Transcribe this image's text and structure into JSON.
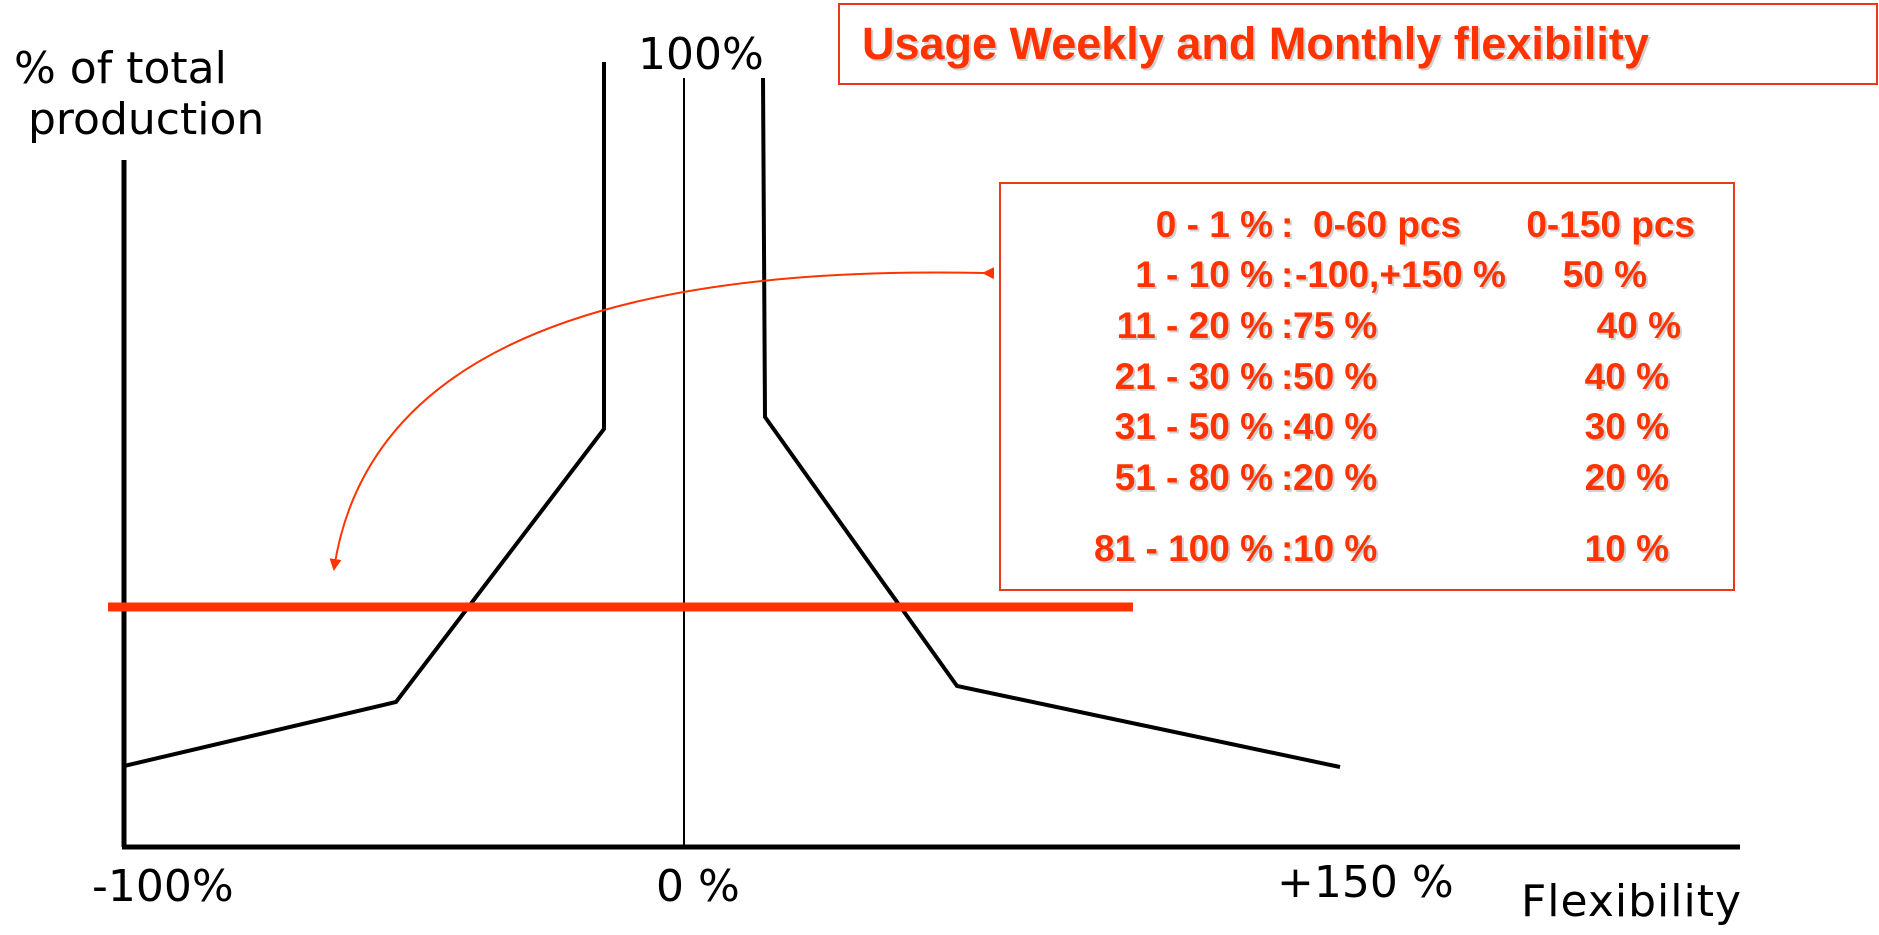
{
  "axes": {
    "y_label_line1": "% of total",
    "y_label_line2": "production",
    "top_label": "100%",
    "x_tick_left": "-100%",
    "x_tick_center": "0 %",
    "x_tick_right": "+150 %",
    "x_label": "Flexibility"
  },
  "title": "Usage  Weekly and Monthly flexibility",
  "table": {
    "rows": [
      {
        "range": "0 -     1 %",
        "sep": ":",
        "weekly": "0-60 pcs",
        "monthly": "0-150 pcs"
      },
      {
        "range": "1 -   10 %",
        "sep": ":",
        "weekly": "-100,+150 %",
        "monthly": "50 %"
      },
      {
        "range": "11 -   20 %",
        "sep": ":",
        "weekly": "75 %",
        "monthly": "40 %"
      },
      {
        "range": "21 -   30 %",
        "sep": ":",
        "weekly": "50 %",
        "monthly": "40 %"
      },
      {
        "range": "31 -   50 %",
        "sep": ":",
        "weekly": "40 %",
        "monthly": "30 %"
      },
      {
        "range": "51 -   80 %",
        "sep": ":",
        "weekly": "20 %",
        "monthly": "20 %"
      },
      {
        "range": "81 - 100 %",
        "sep": ":",
        "weekly": "10 %",
        "monthly": "10 %"
      }
    ]
  },
  "colors": {
    "accent": "#ff3300",
    "border": "#e8391a",
    "line": "#000000"
  }
}
